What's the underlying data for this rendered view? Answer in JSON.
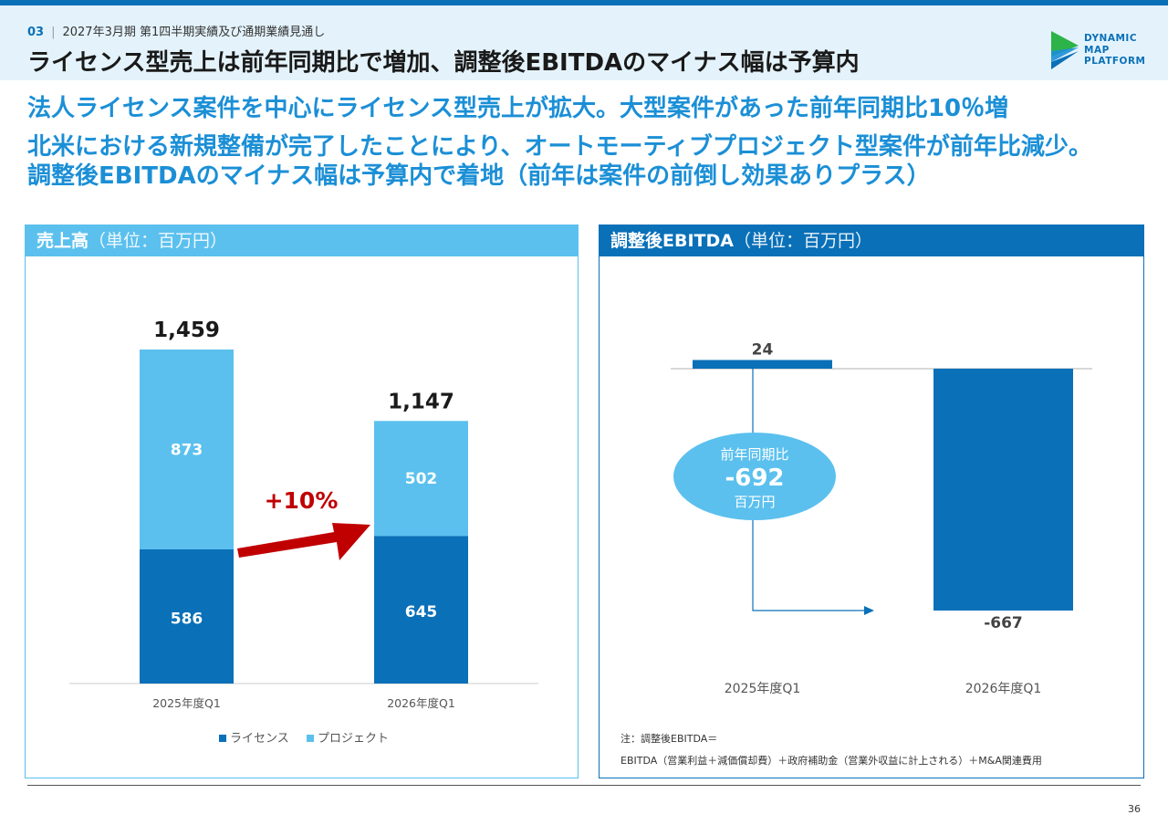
{
  "header": {
    "section_num": "03",
    "crumb": "2027年3月期 第1四半期実績及び通期業績見通し",
    "title": "ライセンス型売上は前年同期比で増加、調整後EBITDAのマイナス幅は予算内"
  },
  "logo": {
    "line1": "DYNAMIC",
    "line2": "MAP",
    "line3": "PLATFORM"
  },
  "lead": {
    "line1": "法人ライセンス案件を中心にライセンス型売上が拡大。大型案件があった前年同期比10％増",
    "line2": "北米における新規整備が完了したことにより、オートモーティブプロジェクト型案件が前年比減少。",
    "line3": "調整後EBITDAのマイナス幅は予算内で着地（前年は案件の前倒し効果ありプラス）"
  },
  "left_panel": {
    "title": "売上高",
    "unit": "（単位：百万円）"
  },
  "right_panel": {
    "title": "調整後EBITDA",
    "unit": "（単位：百万円）"
  },
  "colors": {
    "license": "#0a70b8",
    "project": "#5bc0ee",
    "arrow": "#c00000",
    "ellipse": "#5bc0ee"
  },
  "chart_data": [
    {
      "type": "bar",
      "stacked": true,
      "categories": [
        "2025年度Q1",
        "2026年度Q1"
      ],
      "series": [
        {
          "name": "ライセンス",
          "values": [
            586,
            645
          ]
        },
        {
          "name": "プロジェクト",
          "values": [
            873,
            502
          ]
        }
      ],
      "totals": [
        "1,459",
        "1,147"
      ],
      "series_labels": [
        [
          "586",
          "645"
        ],
        [
          "873",
          "502"
        ]
      ],
      "annotation": "+10%",
      "legend_position": "bottom"
    },
    {
      "type": "bar",
      "categories": [
        "2025年度Q1",
        "2026年度Q1"
      ],
      "values": [
        24,
        -667
      ],
      "value_labels": [
        "24",
        "-667"
      ],
      "callout": {
        "line1": "前年同期比",
        "value": "-692",
        "line3": "百万円"
      }
    }
  ],
  "note": {
    "line1": "注：調整後EBITDA＝",
    "line2": "EBITDA（営業利益＋減価償却費）＋政府補助金（営業外収益に計上される）＋M&A関連費用"
  },
  "page_number": "36"
}
